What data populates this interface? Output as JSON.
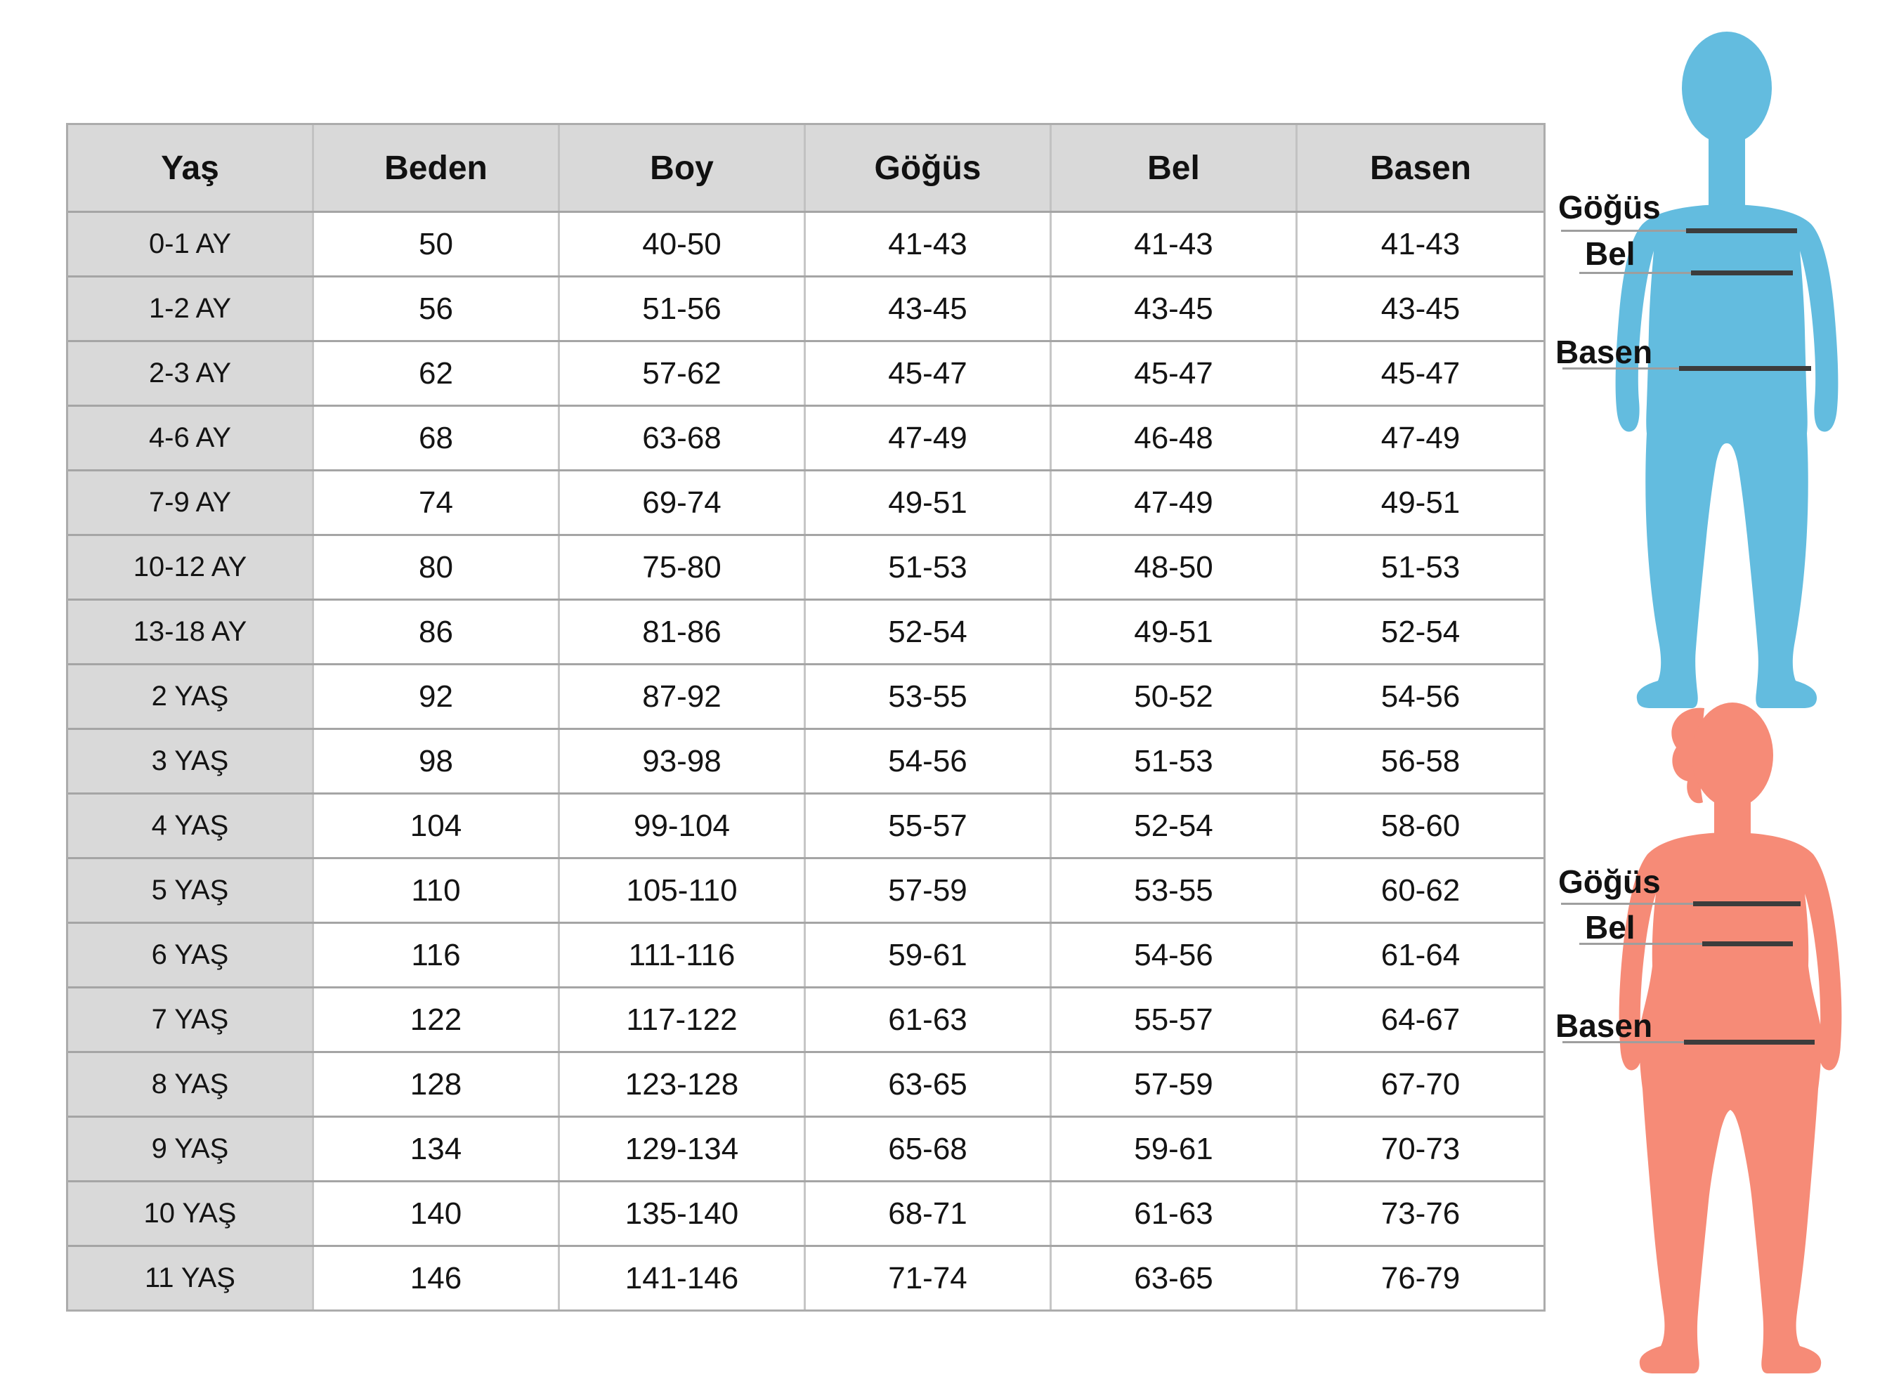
{
  "table": {
    "columns": [
      "Yaş",
      "Beden",
      "Boy",
      "Göğüs",
      "Bel",
      "Basen"
    ],
    "rows": [
      [
        "0-1 AY",
        "50",
        "40-50",
        "41-43",
        "41-43",
        "41-43"
      ],
      [
        "1-2 AY",
        "56",
        "51-56",
        "43-45",
        "43-45",
        "43-45"
      ],
      [
        "2-3 AY",
        "62",
        "57-62",
        "45-47",
        "45-47",
        "45-47"
      ],
      [
        "4-6 AY",
        "68",
        "63-68",
        "47-49",
        "46-48",
        "47-49"
      ],
      [
        "7-9 AY",
        "74",
        "69-74",
        "49-51",
        "47-49",
        "49-51"
      ],
      [
        "10-12 AY",
        "80",
        "75-80",
        "51-53",
        "48-50",
        "51-53"
      ],
      [
        "13-18 AY",
        "86",
        "81-86",
        "52-54",
        "49-51",
        "52-54"
      ],
      [
        "2 YAŞ",
        "92",
        "87-92",
        "53-55",
        "50-52",
        "54-56"
      ],
      [
        "3 YAŞ",
        "98",
        "93-98",
        "54-56",
        "51-53",
        "56-58"
      ],
      [
        "4 YAŞ",
        "104",
        "99-104",
        "55-57",
        "52-54",
        "58-60"
      ],
      [
        "5 YAŞ",
        "110",
        "105-110",
        "57-59",
        "53-55",
        "60-62"
      ],
      [
        "6 YAŞ",
        "116",
        "111-116",
        "59-61",
        "54-56",
        "61-64"
      ],
      [
        "7 YAŞ",
        "122",
        "117-122",
        "61-63",
        "55-57",
        "64-67"
      ],
      [
        "8 YAŞ",
        "128",
        "123-128",
        "63-65",
        "57-59",
        "67-70"
      ],
      [
        "9 YAŞ",
        "134",
        "129-134",
        "65-68",
        "59-61",
        "70-73"
      ],
      [
        "10 YAŞ",
        "140",
        "135-140",
        "68-71",
        "61-63",
        "73-76"
      ],
      [
        "11 YAŞ",
        "146",
        "141-146",
        "71-74",
        "63-65",
        "76-79"
      ]
    ]
  },
  "figures": {
    "boy": {
      "color": "#63BCDF",
      "labels": {
        "chest": "Göğüs",
        "waist": "Bel",
        "hip": "Basen"
      }
    },
    "girl": {
      "color": "#F68B77",
      "labels": {
        "chest": "Göğüs",
        "waist": "Bel",
        "hip": "Basen"
      }
    }
  },
  "colors": {
    "header_bg": "#D9D9D9",
    "row_label_bg": "#D9D9D9",
    "row_border": "#A5A5A5",
    "col_border": "#C6C6C6",
    "measure_line_dark": "#3C3C3C",
    "measure_line_light": "#9E9E9E"
  }
}
